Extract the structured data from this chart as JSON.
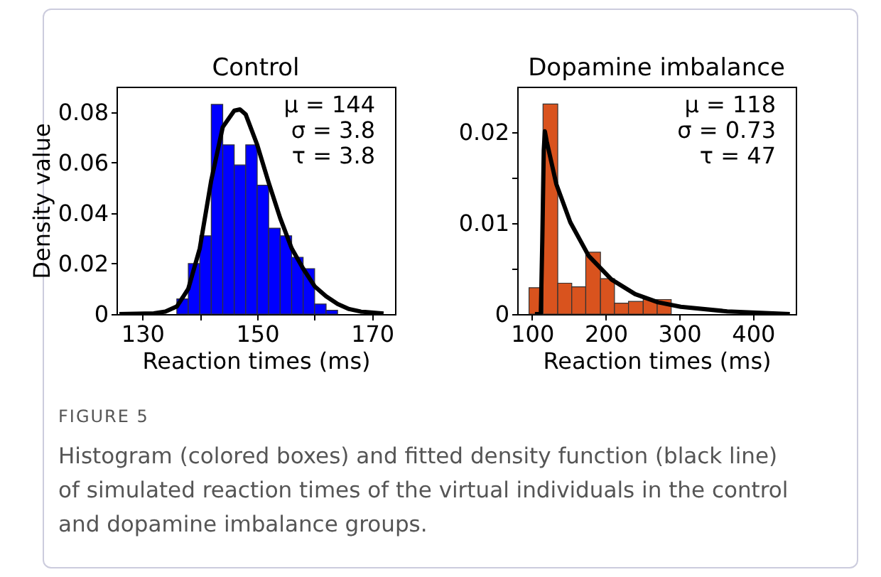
{
  "chart_data": [
    {
      "type": "histogram",
      "title": "Control",
      "xlabel": "Reaction times (ms)",
      "ylabel": "Density value",
      "bins": [
        136,
        138,
        140,
        142,
        144,
        146,
        148,
        150,
        152,
        154,
        156,
        158,
        160,
        162,
        164
      ],
      "values": [
        0.006,
        0.02,
        0.031,
        0.083,
        0.067,
        0.059,
        0.067,
        0.051,
        0.034,
        0.031,
        0.0225,
        0.018,
        0.004,
        0.0015
      ],
      "color": "#0000ff",
      "series": [
        {
          "type": "line",
          "color": "#000000",
          "x": [
            126,
            132,
            134,
            136,
            138,
            140,
            142,
            144,
            146,
            147,
            148,
            150,
            152,
            154,
            156,
            158,
            160,
            162,
            164,
            166,
            168,
            172
          ],
          "values": [
            0,
            0.0003,
            0.001,
            0.003,
            0.01,
            0.026,
            0.053,
            0.074,
            0.0805,
            0.081,
            0.079,
            0.067,
            0.052,
            0.038,
            0.026,
            0.018,
            0.011,
            0.007,
            0.004,
            0.002,
            0.001,
            0.0002
          ]
        }
      ],
      "xlim": [
        125.5,
        174
      ],
      "xticks": [
        130,
        {
          "value": 140,
          "label": null
        },
        150,
        {
          "value": 160,
          "label": null
        },
        170
      ],
      "ylim": [
        0,
        0.09
      ],
      "yticks": [
        0,
        0.02,
        0.04,
        0.06,
        0.08
      ],
      "annotations": [
        "μ = 144",
        "σ = 3.8",
        "τ = 3.8"
      ]
    },
    {
      "type": "histogram",
      "title": "Dopamine imbalance",
      "xlabel": "Reaction times (ms)",
      "bins": [
        96,
        115,
        135,
        154,
        173,
        193,
        212,
        231,
        251,
        270,
        289
      ],
      "values": [
        0.0029,
        0.0231,
        0.0034,
        0.003,
        0.0068,
        0.0039,
        0.0012,
        0.0014,
        0.0016,
        0.0016
      ],
      "color": "#d9531e",
      "series": [
        {
          "type": "line",
          "color": "#000000",
          "x": [
            104,
            112,
            114,
            116,
            117.5,
            120,
            133,
            152,
            177,
            208,
            240,
            271,
            302,
            365,
            450
          ],
          "values": [
            0,
            0,
            0.008,
            0.018,
            0.0201,
            0.019,
            0.0143,
            0.0101,
            0.0064,
            0.0038,
            0.0022,
            0.0013,
            0.0008,
            0.0003,
            0
          ]
        }
      ],
      "xlim": [
        80,
        458
      ],
      "xticks": [
        100,
        200,
        300,
        400
      ],
      "ylim": [
        0,
        0.025
      ],
      "yticks": [
        0,
        {
          "value": 0.005,
          "label": null
        },
        0.01,
        {
          "value": 0.015,
          "label": null
        },
        0.02
      ],
      "annotations": [
        "μ = 118",
        "σ = 0.73",
        "τ = 47",
        "FIGURE 5",
        "Histogram (colored boxes) and fitted density function (black line) of simulated reaction times of the virtual individuals in the control and dopamine imbalance groups."
      ]
    }
  ]
}
